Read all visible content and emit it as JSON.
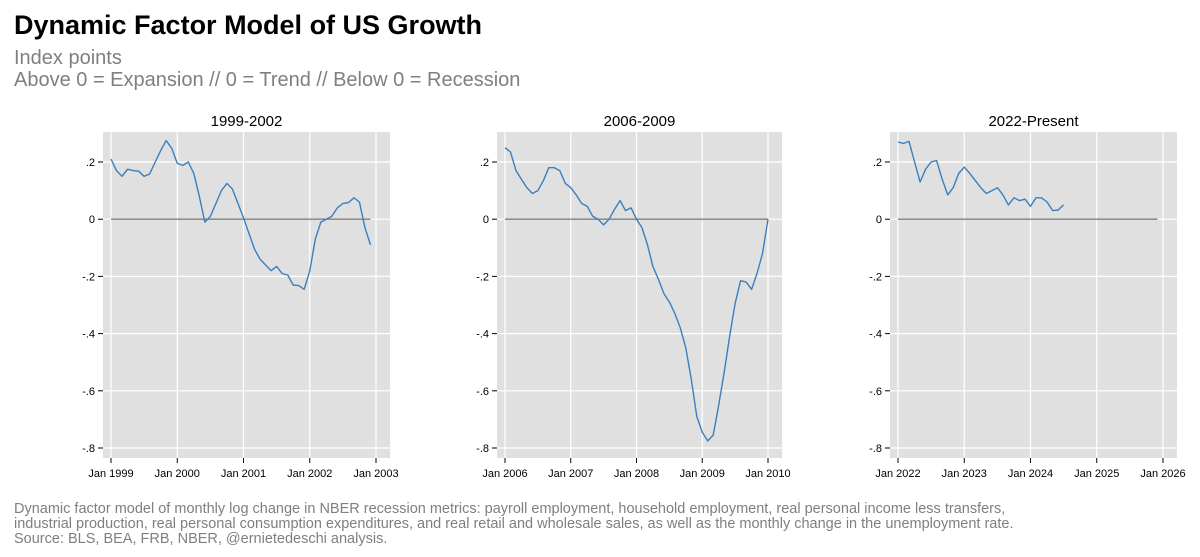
{
  "header": {
    "title": "Dynamic Factor Model of US Growth",
    "subtitle_line1": "Index points",
    "subtitle_line2": "Above 0 = Expansion  //  0 = Trend  //  Below 0 = Recession"
  },
  "footer": {
    "line1": "Dynamic factor model of monthly log change in NBER recession metrics: payroll employment, household employment, real personal income less transfers,",
    "line2": "industrial production, real personal consumption expenditures, and real retail and wholesale sales, as well as the monthly change in the unemployment rate.",
    "line3": "Source: BLS, BEA, FRB, NBER, @ernietedeschi analysis."
  },
  "colors": {
    "plot_background": "#e0e0e0",
    "gridline": "#ffffff",
    "series_line": "#3a7fbd",
    "zero_line": "#808080"
  },
  "chart_data": [
    {
      "type": "line",
      "title": "1999-2002",
      "xlabel": "",
      "ylabel": "",
      "xlim": [
        0,
        48
      ],
      "ylim": [
        -0.8,
        0.25
      ],
      "yticks": [
        0.2,
        0,
        -0.2,
        -0.4,
        -0.6,
        -0.8
      ],
      "ytick_labels": [
        ".2",
        "0",
        "-.2",
        "-.4",
        "-.6",
        "-.8"
      ],
      "xticks": [
        0,
        12,
        24,
        36,
        48
      ],
      "xtick_labels": [
        "Jan 1999",
        "Jan 2000",
        "Jan 2001",
        "Jan 2002",
        "Jan 2003"
      ],
      "zero_line_end": 47,
      "series": [
        {
          "name": "DFM index",
          "x": [
            0,
            1,
            2,
            3,
            4,
            5,
            6,
            7,
            8,
            9,
            10,
            11,
            12,
            13,
            14,
            15,
            16,
            17,
            18,
            19,
            20,
            21,
            22,
            23,
            24,
            25,
            26,
            27,
            28,
            29,
            30,
            31,
            32,
            33,
            34,
            35,
            36,
            37,
            38,
            39,
            40,
            41,
            42,
            43,
            44,
            45,
            46,
            47
          ],
          "values": [
            0.21,
            0.17,
            0.15,
            0.175,
            0.17,
            0.168,
            0.15,
            0.158,
            0.2,
            0.24,
            0.275,
            0.248,
            0.195,
            0.188,
            0.2,
            0.16,
            0.08,
            -0.01,
            0.01,
            0.055,
            0.1,
            0.125,
            0.105,
            0.055,
            0.005,
            -0.05,
            -0.105,
            -0.14,
            -0.16,
            -0.18,
            -0.165,
            -0.19,
            -0.195,
            -0.23,
            -0.232,
            -0.245,
            -0.18,
            -0.07,
            -0.01,
            0.0,
            0.01,
            0.04,
            0.055,
            0.058,
            0.075,
            0.06,
            -0.03,
            -0.09
          ]
        }
      ]
    },
    {
      "type": "line",
      "title": "2006-2009",
      "xlabel": "",
      "ylabel": "",
      "xlim": [
        0,
        48
      ],
      "ylim": [
        -0.8,
        0.25
      ],
      "yticks": [
        0.2,
        0,
        -0.2,
        -0.4,
        -0.6,
        -0.8
      ],
      "ytick_labels": [
        ".2",
        "0",
        "-.2",
        "-.4",
        "-.6",
        "-.8"
      ],
      "xticks": [
        0,
        12,
        24,
        36,
        48
      ],
      "xtick_labels": [
        "Jan 2006",
        "Jan 2007",
        "Jan 2008",
        "Jan 2009",
        "Jan 2010"
      ],
      "zero_line_end": 48,
      "series": [
        {
          "name": "DFM index",
          "x": [
            0,
            1,
            2,
            3,
            4,
            5,
            6,
            7,
            8,
            9,
            10,
            11,
            12,
            13,
            14,
            15,
            16,
            17,
            18,
            19,
            20,
            21,
            22,
            23,
            24,
            25,
            26,
            27,
            28,
            29,
            30,
            31,
            32,
            33,
            34,
            35,
            36,
            37,
            38,
            39,
            40,
            41,
            42,
            43,
            44,
            45,
            46,
            47,
            48
          ],
          "values": [
            0.25,
            0.235,
            0.17,
            0.14,
            0.11,
            0.09,
            0.1,
            0.135,
            0.18,
            0.18,
            0.17,
            0.125,
            0.11,
            0.085,
            0.055,
            0.045,
            0.01,
            0.0,
            -0.02,
            0.0,
            0.035,
            0.065,
            0.03,
            0.04,
            0.0,
            -0.03,
            -0.09,
            -0.165,
            -0.21,
            -0.26,
            -0.29,
            -0.33,
            -0.38,
            -0.45,
            -0.56,
            -0.69,
            -0.745,
            -0.775,
            -0.755,
            -0.65,
            -0.535,
            -0.41,
            -0.295,
            -0.215,
            -0.22,
            -0.245,
            -0.19,
            -0.12,
            0.0
          ]
        }
      ]
    },
    {
      "type": "line",
      "title": "2022-Present",
      "xlabel": "",
      "ylabel": "",
      "xlim": [
        0,
        48
      ],
      "ylim": [
        -0.8,
        0.25
      ],
      "yticks": [
        0.2,
        0,
        -0.2,
        -0.4,
        -0.6,
        -0.8
      ],
      "ytick_labels": [
        ".2",
        "0",
        "-.2",
        "-.4",
        "-.6",
        "-.8"
      ],
      "xticks": [
        0,
        12,
        24,
        36,
        48
      ],
      "xtick_labels": [
        "Jan 2022",
        "Jan 2023",
        "Jan 2024",
        "Jan 2025",
        "Jan 2026"
      ],
      "zero_line_end": 47,
      "series": [
        {
          "name": "DFM index",
          "x": [
            0,
            1,
            2,
            3,
            4,
            5,
            6,
            7,
            8,
            9,
            10,
            11,
            12,
            13,
            14,
            15,
            16,
            17,
            18,
            19,
            20,
            21,
            22,
            23,
            24,
            25,
            26,
            27,
            28,
            29,
            30
          ],
          "values": [
            0.27,
            0.265,
            0.272,
            0.2,
            0.13,
            0.175,
            0.2,
            0.205,
            0.14,
            0.085,
            0.11,
            0.16,
            0.182,
            0.16,
            0.135,
            0.11,
            0.09,
            0.1,
            0.11,
            0.085,
            0.05,
            0.075,
            0.065,
            0.07,
            0.045,
            0.075,
            0.075,
            0.06,
            0.03,
            0.032,
            0.05
          ]
        }
      ]
    }
  ]
}
